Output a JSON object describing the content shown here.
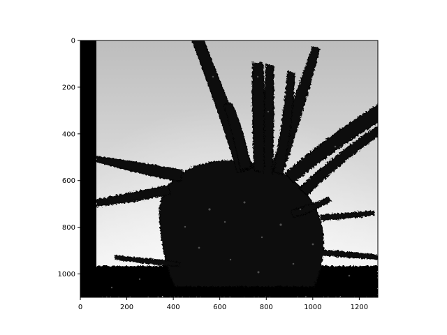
{
  "chart_data": {
    "type": "heatmap",
    "title": "",
    "xlabel": "",
    "ylabel": "",
    "xlim": [
      0,
      1280
    ],
    "ylim": [
      1100,
      0
    ],
    "colormap": "gray",
    "grid": false,
    "content": "grayscale image: dark plant silhouette against a light gray sky",
    "x_ticks": [
      0,
      200,
      400,
      600,
      800,
      1000,
      1200
    ],
    "y_ticks": [
      0,
      200,
      400,
      600,
      800,
      1000
    ],
    "x_tick_labels": [
      "0",
      "200",
      "400",
      "600",
      "800",
      "1000",
      "1200"
    ],
    "y_tick_labels": [
      "0",
      "200",
      "400",
      "600",
      "800",
      "1000"
    ]
  }
}
